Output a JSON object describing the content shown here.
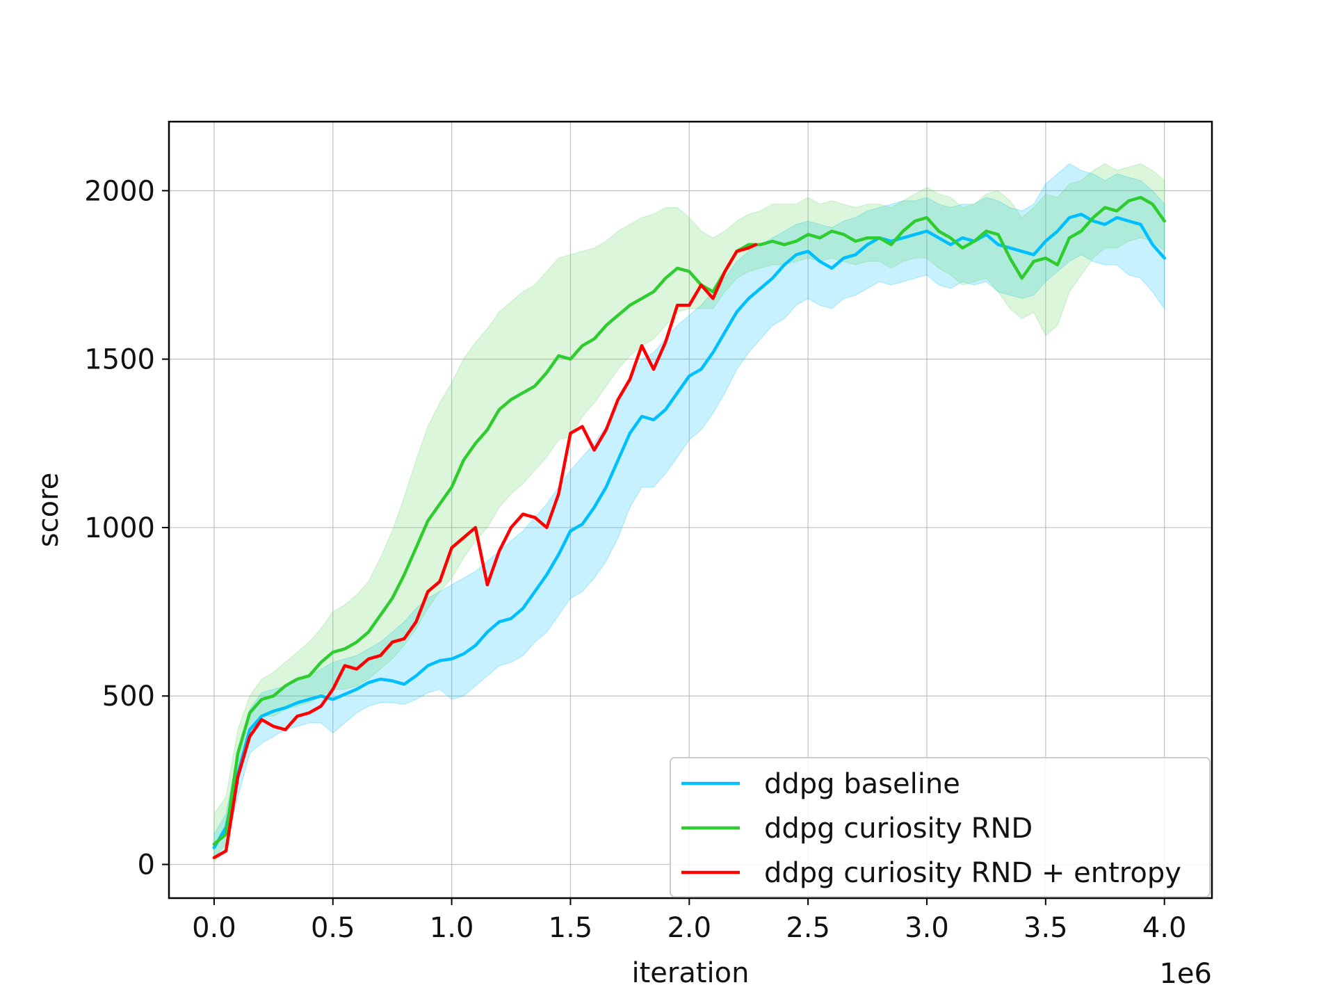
{
  "chart_data": {
    "type": "line",
    "xlabel": "iteration",
    "ylabel": "score",
    "x_offset_label": "1e6",
    "xlim": [
      -0.19,
      4.2
    ],
    "ylim": [
      -100,
      2205
    ],
    "xticks": [
      0.0,
      0.5,
      1.0,
      1.5,
      2.0,
      2.5,
      3.0,
      3.5,
      4.0
    ],
    "xtick_labels": [
      "0.0",
      "0.5",
      "1.0",
      "1.5",
      "2.0",
      "2.5",
      "3.0",
      "3.5",
      "4.0"
    ],
    "yticks": [
      0,
      500,
      1000,
      1500,
      2000
    ],
    "ytick_labels": [
      "0",
      "500",
      "1000",
      "1500",
      "2000"
    ],
    "grid": true,
    "legend_position": "lower-right",
    "series": [
      {
        "name": "ddpg baseline",
        "color": "#00bfff",
        "band_color": "#00bfff",
        "x": [
          0.0,
          0.05,
          0.1,
          0.15,
          0.2,
          0.25,
          0.3,
          0.35,
          0.4,
          0.45,
          0.5,
          0.55,
          0.6,
          0.65,
          0.7,
          0.75,
          0.8,
          0.85,
          0.9,
          0.95,
          1.0,
          1.05,
          1.1,
          1.15,
          1.2,
          1.25,
          1.3,
          1.35,
          1.4,
          1.45,
          1.5,
          1.55,
          1.6,
          1.65,
          1.7,
          1.75,
          1.8,
          1.85,
          1.9,
          1.95,
          2.0,
          2.05,
          2.1,
          2.15,
          2.2,
          2.25,
          2.3,
          2.35,
          2.4,
          2.45,
          2.5,
          2.55,
          2.6,
          2.65,
          2.7,
          2.75,
          2.8,
          2.85,
          2.9,
          2.95,
          3.0,
          3.05,
          3.1,
          3.15,
          3.2,
          3.25,
          3.3,
          3.35,
          3.4,
          3.45,
          3.5,
          3.55,
          3.6,
          3.65,
          3.7,
          3.75,
          3.8,
          3.85,
          3.9,
          3.95,
          4.0
        ],
        "values": [
          50,
          110,
          270,
          400,
          440,
          455,
          465,
          480,
          490,
          500,
          490,
          505,
          520,
          540,
          550,
          545,
          535,
          560,
          590,
          605,
          610,
          625,
          650,
          690,
          720,
          730,
          760,
          810,
          860,
          920,
          990,
          1010,
          1060,
          1120,
          1200,
          1280,
          1330,
          1320,
          1350,
          1400,
          1450,
          1470,
          1520,
          1580,
          1640,
          1680,
          1710,
          1740,
          1780,
          1810,
          1820,
          1790,
          1770,
          1800,
          1810,
          1840,
          1860,
          1850,
          1860,
          1870,
          1880,
          1860,
          1840,
          1860,
          1850,
          1870,
          1840,
          1830,
          1820,
          1810,
          1850,
          1880,
          1920,
          1930,
          1910,
          1900,
          1920,
          1910,
          1900,
          1840,
          1800
        ],
        "lower": [
          20,
          60,
          200,
          330,
          360,
          380,
          400,
          410,
          420,
          420,
          390,
          420,
          450,
          470,
          480,
          480,
          475,
          490,
          510,
          520,
          490,
          500,
          530,
          560,
          590,
          600,
          620,
          660,
          690,
          740,
          790,
          810,
          850,
          900,
          970,
          1060,
          1120,
          1120,
          1160,
          1210,
          1260,
          1290,
          1340,
          1400,
          1470,
          1520,
          1560,
          1600,
          1620,
          1660,
          1680,
          1660,
          1650,
          1680,
          1690,
          1710,
          1730,
          1720,
          1730,
          1740,
          1750,
          1720,
          1710,
          1730,
          1720,
          1730,
          1700,
          1690,
          1680,
          1690,
          1730,
          1760,
          1790,
          1810,
          1790,
          1780,
          1780,
          1750,
          1740,
          1700,
          1650
        ],
        "upper": [
          90,
          150,
          330,
          460,
          510,
          520,
          530,
          550,
          560,
          580,
          600,
          610,
          620,
          640,
          660,
          690,
          720,
          760,
          790,
          810,
          830,
          850,
          870,
          900,
          930,
          960,
          990,
          1030,
          1070,
          1120,
          1170,
          1210,
          1250,
          1300,
          1360,
          1440,
          1500,
          1520,
          1560,
          1600,
          1630,
          1660,
          1700,
          1740,
          1790,
          1820,
          1840,
          1860,
          1880,
          1900,
          1910,
          1900,
          1890,
          1910,
          1920,
          1940,
          1950,
          1960,
          1970,
          1970,
          1980,
          1960,
          1950,
          1960,
          1960,
          1980,
          1970,
          1950,
          1940,
          1960,
          2020,
          2050,
          2080,
          2060,
          2050,
          2030,
          2050,
          2040,
          2030,
          2000,
          1960
        ]
      },
      {
        "name": "ddpg curiosity RND",
        "color": "#2ecc2e",
        "band_color": "#5cd65c",
        "x": [
          0.0,
          0.05,
          0.1,
          0.15,
          0.2,
          0.25,
          0.3,
          0.35,
          0.4,
          0.45,
          0.5,
          0.55,
          0.6,
          0.65,
          0.7,
          0.75,
          0.8,
          0.85,
          0.9,
          0.95,
          1.0,
          1.05,
          1.1,
          1.15,
          1.2,
          1.25,
          1.3,
          1.35,
          1.4,
          1.45,
          1.5,
          1.55,
          1.6,
          1.65,
          1.7,
          1.75,
          1.8,
          1.85,
          1.9,
          1.95,
          2.0,
          2.05,
          2.1,
          2.15,
          2.2,
          2.25,
          2.3,
          2.35,
          2.4,
          2.45,
          2.5,
          2.55,
          2.6,
          2.65,
          2.7,
          2.75,
          2.8,
          2.85,
          2.9,
          2.95,
          3.0,
          3.05,
          3.1,
          3.15,
          3.2,
          3.25,
          3.3,
          3.35,
          3.4,
          3.45,
          3.5,
          3.55,
          3.6,
          3.65,
          3.7,
          3.75,
          3.8,
          3.85,
          3.9,
          3.95,
          4.0
        ],
        "values": [
          60,
          90,
          330,
          450,
          490,
          500,
          530,
          550,
          560,
          600,
          630,
          640,
          660,
          690,
          740,
          790,
          860,
          940,
          1020,
          1070,
          1120,
          1200,
          1250,
          1290,
          1350,
          1380,
          1400,
          1420,
          1460,
          1510,
          1500,
          1540,
          1560,
          1600,
          1630,
          1660,
          1680,
          1700,
          1740,
          1770,
          1760,
          1720,
          1700,
          1760,
          1820,
          1840,
          1840,
          1850,
          1840,
          1850,
          1870,
          1860,
          1880,
          1870,
          1850,
          1860,
          1860,
          1840,
          1880,
          1910,
          1920,
          1880,
          1860,
          1830,
          1850,
          1880,
          1870,
          1800,
          1740,
          1790,
          1800,
          1780,
          1860,
          1880,
          1920,
          1950,
          1940,
          1970,
          1980,
          1960,
          1910
        ],
        "lower": [
          10,
          40,
          280,
          400,
          440,
          440,
          460,
          470,
          480,
          500,
          520,
          520,
          530,
          550,
          580,
          610,
          650,
          700,
          760,
          810,
          850,
          910,
          960,
          1000,
          1060,
          1100,
          1130,
          1170,
          1210,
          1260,
          1270,
          1330,
          1370,
          1420,
          1470,
          1510,
          1540,
          1560,
          1600,
          1640,
          1650,
          1650,
          1650,
          1700,
          1740,
          1760,
          1770,
          1780,
          1780,
          1790,
          1800,
          1790,
          1800,
          1790,
          1780,
          1790,
          1790,
          1770,
          1790,
          1800,
          1800,
          1770,
          1750,
          1720,
          1730,
          1740,
          1700,
          1650,
          1620,
          1640,
          1570,
          1600,
          1700,
          1750,
          1800,
          1830,
          1830,
          1850,
          1860,
          1850,
          1820
        ],
        "upper": [
          150,
          200,
          400,
          500,
          550,
          570,
          600,
          630,
          660,
          700,
          750,
          770,
          800,
          840,
          910,
          990,
          1090,
          1200,
          1300,
          1370,
          1430,
          1500,
          1550,
          1590,
          1640,
          1670,
          1700,
          1720,
          1760,
          1800,
          1810,
          1820,
          1830,
          1850,
          1880,
          1900,
          1920,
          1930,
          1950,
          1950,
          1920,
          1880,
          1860,
          1880,
          1910,
          1930,
          1940,
          1960,
          1960,
          1960,
          1980,
          1960,
          1970,
          1960,
          1950,
          1960,
          1960,
          1950,
          1970,
          1990,
          2010,
          1990,
          1980,
          1950,
          1960,
          1990,
          2000,
          1970,
          1920,
          1950,
          1990,
          1980,
          2020,
          2030,
          2060,
          2080,
          2060,
          2070,
          2080,
          2060,
          2030
        ]
      },
      {
        "name": "ddpg curiosity RND + entropy",
        "color": "#ff0000",
        "x": [
          0.0,
          0.05,
          0.1,
          0.15,
          0.2,
          0.25,
          0.3,
          0.35,
          0.4,
          0.45,
          0.5,
          0.55,
          0.6,
          0.65,
          0.7,
          0.75,
          0.8,
          0.85,
          0.9,
          0.95,
          1.0,
          1.05,
          1.1,
          1.15,
          1.2,
          1.25,
          1.3,
          1.35,
          1.4,
          1.45,
          1.5,
          1.55,
          1.6,
          1.65,
          1.7,
          1.75,
          1.8,
          1.85,
          1.9,
          1.95,
          2.0,
          2.05,
          2.1,
          2.15,
          2.2,
          2.25,
          2.28
        ],
        "values": [
          20,
          40,
          260,
          380,
          430,
          410,
          400,
          440,
          450,
          470,
          520,
          590,
          580,
          610,
          620,
          660,
          670,
          720,
          810,
          840,
          940,
          970,
          1000,
          830,
          930,
          1000,
          1040,
          1030,
          1000,
          1100,
          1280,
          1300,
          1230,
          1290,
          1380,
          1440,
          1540,
          1470,
          1550,
          1660,
          1660,
          1720,
          1680,
          1760,
          1820,
          1830,
          1840
        ],
        "lower": null,
        "upper": null
      }
    ]
  }
}
